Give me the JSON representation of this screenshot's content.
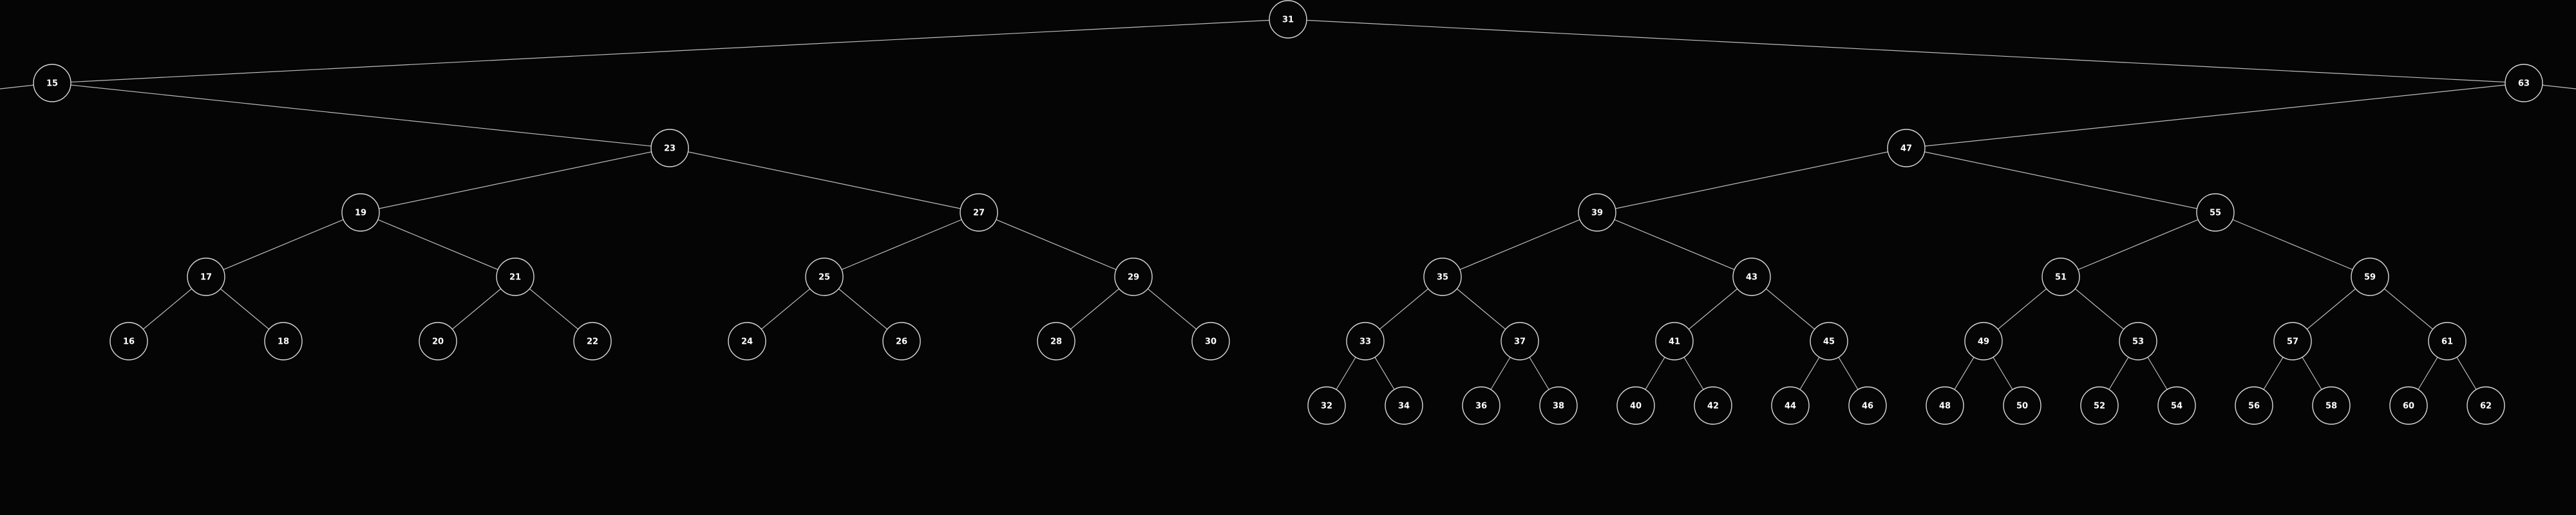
{
  "colors": {
    "background": "#050505",
    "edge": "#bdbdbd",
    "node_stroke": "#d8d8d8",
    "label": "#ffffff"
  },
  "tree": {
    "root": "31",
    "nodes": [
      "15",
      "16",
      "17",
      "18",
      "19",
      "20",
      "21",
      "22",
      "23",
      "24",
      "25",
      "26",
      "27",
      "28",
      "29",
      "30",
      "31",
      "32",
      "33",
      "34",
      "35",
      "36",
      "37",
      "38",
      "39",
      "40",
      "41",
      "42",
      "43",
      "44",
      "45",
      "46",
      "47",
      "48",
      "49",
      "50",
      "51",
      "52",
      "53",
      "54",
      "55",
      "56",
      "57",
      "58",
      "59",
      "60",
      "61",
      "62",
      "63"
    ],
    "edges": [
      [
        "31",
        "15"
      ],
      [
        "31",
        "63"
      ],
      [
        "15",
        "23"
      ],
      [
        "23",
        "19"
      ],
      [
        "23",
        "27"
      ],
      [
        "19",
        "17"
      ],
      [
        "19",
        "21"
      ],
      [
        "27",
        "25"
      ],
      [
        "27",
        "29"
      ],
      [
        "17",
        "16"
      ],
      [
        "17",
        "18"
      ],
      [
        "21",
        "20"
      ],
      [
        "21",
        "22"
      ],
      [
        "25",
        "24"
      ],
      [
        "25",
        "26"
      ],
      [
        "29",
        "28"
      ],
      [
        "29",
        "30"
      ],
      [
        "63",
        "47"
      ],
      [
        "47",
        "39"
      ],
      [
        "47",
        "55"
      ],
      [
        "39",
        "35"
      ],
      [
        "39",
        "43"
      ],
      [
        "55",
        "51"
      ],
      [
        "55",
        "59"
      ],
      [
        "35",
        "33"
      ],
      [
        "35",
        "37"
      ],
      [
        "43",
        "41"
      ],
      [
        "43",
        "45"
      ],
      [
        "51",
        "49"
      ],
      [
        "51",
        "53"
      ],
      [
        "59",
        "57"
      ],
      [
        "59",
        "61"
      ],
      [
        "33",
        "32"
      ],
      [
        "33",
        "34"
      ],
      [
        "37",
        "36"
      ],
      [
        "37",
        "38"
      ],
      [
        "41",
        "40"
      ],
      [
        "41",
        "42"
      ],
      [
        "45",
        "44"
      ],
      [
        "45",
        "46"
      ],
      [
        "49",
        "48"
      ],
      [
        "49",
        "50"
      ],
      [
        "53",
        "52"
      ],
      [
        "53",
        "54"
      ],
      [
        "57",
        "56"
      ],
      [
        "57",
        "58"
      ],
      [
        "61",
        "60"
      ],
      [
        "61",
        "62"
      ]
    ]
  }
}
